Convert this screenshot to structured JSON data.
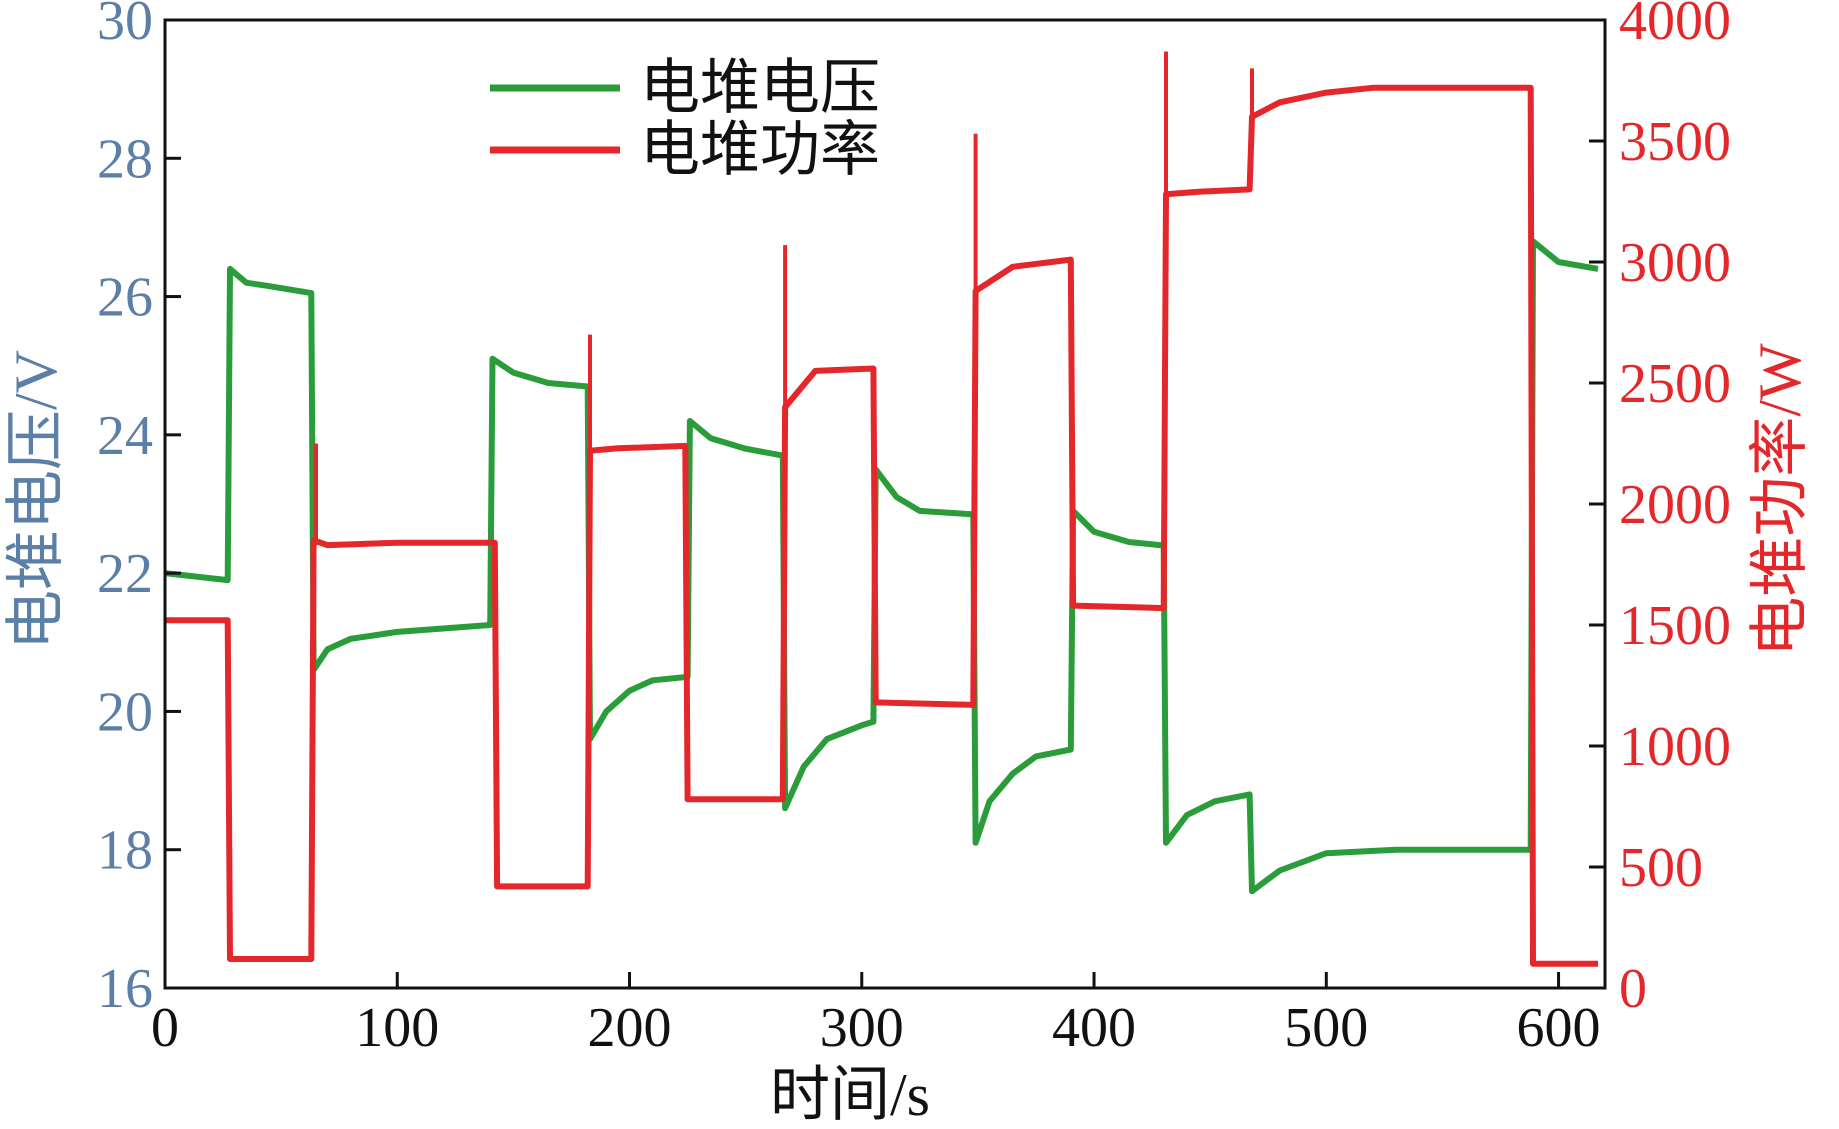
{
  "colors": {
    "voltage": "#2a9d3a",
    "power": "#e3272b",
    "left_axis": "#5b7fa6",
    "axis": "#111111"
  },
  "chart_data": {
    "type": "line",
    "xlabel": "时间/s",
    "ylabel_left": "电堆电压/V",
    "ylabel_right": "电堆功率/W",
    "xlim": [
      0,
      620
    ],
    "ylim_left": [
      16,
      30
    ],
    "ylim_right": [
      0,
      4000
    ],
    "x_ticks": [
      "0",
      "100",
      "200",
      "300",
      "400",
      "500",
      "600"
    ],
    "y_left_ticks": [
      "16",
      "18",
      "20",
      "22",
      "24",
      "26",
      "28",
      "30"
    ],
    "y_right_ticks": [
      "0",
      "500",
      "1000",
      "1500",
      "2000",
      "2500",
      "3000",
      "3500",
      "4000"
    ],
    "legend_position": "top-center",
    "grid": false,
    "series": [
      {
        "name": "电堆电压",
        "axis": "left",
        "points": [
          [
            0,
            22.0
          ],
          [
            27,
            21.9
          ],
          [
            28,
            26.4
          ],
          [
            35,
            26.2
          ],
          [
            45,
            26.15
          ],
          [
            63,
            26.05
          ],
          [
            64,
            20.6
          ],
          [
            70,
            20.9
          ],
          [
            80,
            21.05
          ],
          [
            100,
            21.15
          ],
          [
            140,
            21.25
          ],
          [
            141,
            25.1
          ],
          [
            150,
            24.9
          ],
          [
            165,
            24.75
          ],
          [
            182,
            24.7
          ],
          [
            183,
            19.6
          ],
          [
            190,
            20.0
          ],
          [
            200,
            20.3
          ],
          [
            210,
            20.45
          ],
          [
            225,
            20.5
          ],
          [
            226,
            24.2
          ],
          [
            235,
            23.95
          ],
          [
            250,
            23.8
          ],
          [
            266,
            23.7
          ],
          [
            267,
            18.6
          ],
          [
            275,
            19.2
          ],
          [
            285,
            19.6
          ],
          [
            300,
            19.8
          ],
          [
            305,
            19.85
          ],
          [
            306,
            23.5
          ],
          [
            315,
            23.1
          ],
          [
            325,
            22.9
          ],
          [
            348,
            22.85
          ],
          [
            349,
            18.1
          ],
          [
            355,
            18.7
          ],
          [
            365,
            19.1
          ],
          [
            375,
            19.35
          ],
          [
            390,
            19.45
          ],
          [
            391,
            22.9
          ],
          [
            400,
            22.6
          ],
          [
            415,
            22.45
          ],
          [
            430,
            22.4
          ],
          [
            431,
            18.1
          ],
          [
            440,
            18.5
          ],
          [
            452,
            18.7
          ],
          [
            467,
            18.8
          ],
          [
            468,
            17.4
          ],
          [
            480,
            17.7
          ],
          [
            500,
            17.95
          ],
          [
            530,
            18.0
          ],
          [
            588,
            18.0
          ],
          [
            589,
            26.8
          ],
          [
            600,
            26.5
          ],
          [
            617,
            26.4
          ]
        ]
      },
      {
        "name": "电堆功率",
        "axis": "right",
        "points": [
          [
            0,
            1520
          ],
          [
            27,
            1520
          ],
          [
            28,
            120
          ],
          [
            63,
            120
          ],
          [
            64,
            1850
          ],
          [
            70,
            1830
          ],
          [
            100,
            1840
          ],
          [
            142,
            1840
          ],
          [
            143,
            420
          ],
          [
            182,
            420
          ],
          [
            183,
            2220
          ],
          [
            195,
            2230
          ],
          [
            224,
            2240
          ],
          [
            225,
            780
          ],
          [
            266,
            780
          ],
          [
            267,
            2400
          ],
          [
            280,
            2550
          ],
          [
            305,
            2560
          ],
          [
            306,
            1180
          ],
          [
            348,
            1170
          ],
          [
            349,
            2880
          ],
          [
            365,
            2980
          ],
          [
            390,
            3010
          ],
          [
            391,
            1580
          ],
          [
            430,
            1570
          ],
          [
            431,
            3280
          ],
          [
            445,
            3290
          ],
          [
            467,
            3300
          ],
          [
            468,
            3600
          ],
          [
            480,
            3660
          ],
          [
            500,
            3700
          ],
          [
            520,
            3720
          ],
          [
            588,
            3720
          ],
          [
            589,
            100
          ],
          [
            617,
            100
          ]
        ],
        "spikes": [
          [
            65,
            2250
          ],
          [
            183,
            2700
          ],
          [
            267,
            3070
          ],
          [
            349,
            3530
          ],
          [
            431,
            3870
          ],
          [
            468,
            3800
          ]
        ]
      }
    ]
  }
}
